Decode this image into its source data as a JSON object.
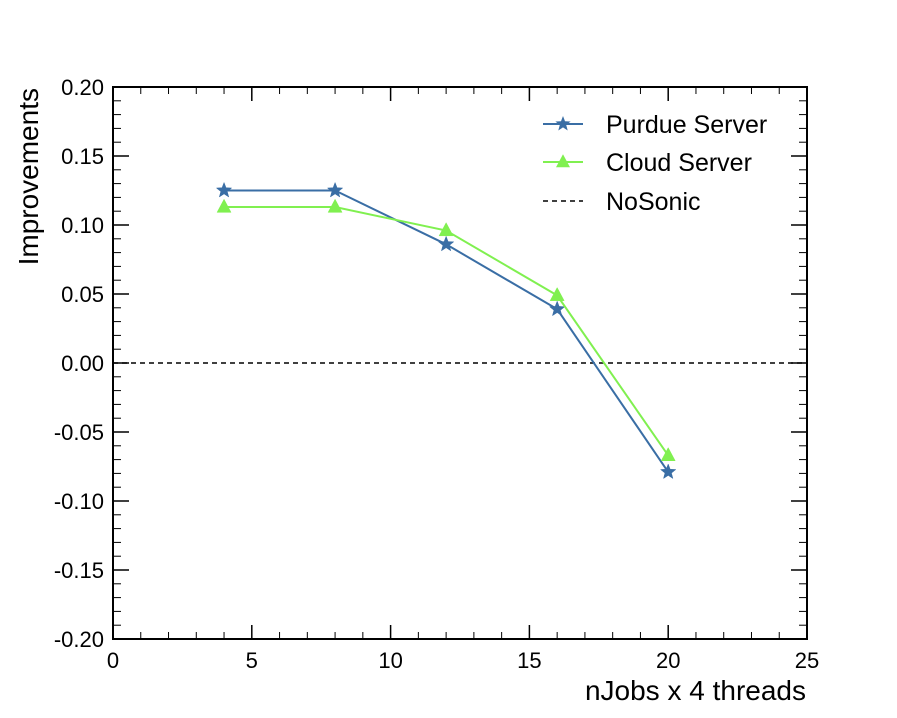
{
  "chart_data": {
    "type": "line",
    "title": "",
    "xlabel": "nJobs x 4 threads",
    "ylabel": "Improvements",
    "xlim": [
      0,
      25
    ],
    "ylim": [
      -0.2,
      0.2
    ],
    "x_ticks": [
      0,
      5,
      10,
      15,
      20,
      25
    ],
    "x_tick_labels": [
      "0",
      "5",
      "10",
      "15",
      "20",
      "25"
    ],
    "y_ticks": [
      -0.2,
      -0.15,
      -0.1,
      -0.05,
      0.0,
      0.05,
      0.1,
      0.15,
      0.2
    ],
    "y_tick_labels": [
      "-0.20",
      "-0.15",
      "-0.10",
      "-0.05",
      "0.00",
      "0.05",
      "0.10",
      "0.15",
      "0.20"
    ],
    "grid": false,
    "legend_position": "top-right",
    "series": [
      {
        "name": "Purdue Server",
        "color": "#3a6ea5",
        "marker": "star",
        "x": [
          4,
          8,
          12,
          16,
          20
        ],
        "y": [
          0.125,
          0.125,
          0.086,
          0.039,
          -0.079
        ]
      },
      {
        "name": "Cloud Server",
        "color": "#80f050",
        "marker": "triangle",
        "x": [
          4,
          8,
          12,
          16,
          20
        ],
        "y": [
          0.113,
          0.113,
          0.096,
          0.049,
          -0.067
        ]
      }
    ],
    "reference_line": {
      "name": "NoSonic",
      "y": 0.0,
      "style": "dashed",
      "color": "#000000"
    }
  }
}
